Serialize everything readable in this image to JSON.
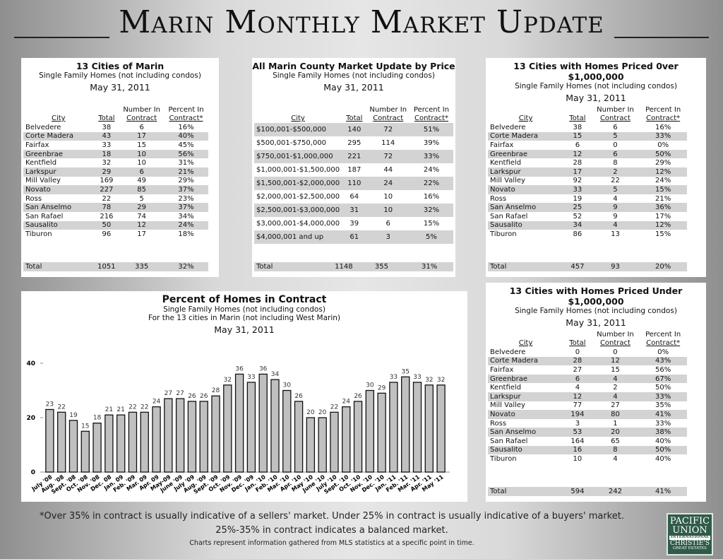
{
  "title": "Marin Monthly Market Update",
  "headers": {
    "city": "City",
    "total": "Total",
    "number": "Number In Contract",
    "number_l1": "Number In",
    "number_l2": "Contract",
    "percent_l1": "Percent In",
    "percent_l2": "Contract*"
  },
  "panel1": {
    "title": "13 Cities of Marin",
    "subtitle": "Single Family Homes (not including condos)",
    "date": "May 31, 2011",
    "rows": [
      [
        "Belvedere",
        "38",
        "6",
        "16%"
      ],
      [
        "Corte Madera",
        "43",
        "17",
        "40%"
      ],
      [
        "Fairfax",
        "33",
        "15",
        "45%"
      ],
      [
        "Greenbrae",
        "18",
        "10",
        "56%"
      ],
      [
        "Kentfield",
        "32",
        "10",
        "31%"
      ],
      [
        "Larkspur",
        "29",
        "6",
        "21%"
      ],
      [
        "Mill Valley",
        "169",
        "49",
        "29%"
      ],
      [
        "Novato",
        "227",
        "85",
        "37%"
      ],
      [
        "Ross",
        "22",
        "5",
        "23%"
      ],
      [
        "San Anselmo",
        "78",
        "29",
        "37%"
      ],
      [
        "San Rafael",
        "216",
        "74",
        "34%"
      ],
      [
        "Sausalito",
        "50",
        "12",
        "24%"
      ],
      [
        "Tiburon",
        "96",
        "17",
        "18%"
      ]
    ],
    "total": [
      "Total",
      "1051",
      "335",
      "32%"
    ]
  },
  "panel2": {
    "title": "All Marin County Market Update by Price",
    "subtitle": "Single Family Homes (not including condos)",
    "date": "May 31, 2011",
    "rows": [
      [
        "$100,001-$500,000",
        "140",
        "72",
        "51%"
      ],
      [
        "$500,001-$750,000",
        "295",
        "114",
        "39%"
      ],
      [
        "$750,001-$1,000,000",
        "221",
        "72",
        "33%"
      ],
      [
        "$1,000,001-$1,500,000",
        "187",
        "44",
        "24%"
      ],
      [
        "$1,500,001-$2,000,000",
        "110",
        "24",
        "22%"
      ],
      [
        "$2,000,001-$2,500,000",
        "64",
        "10",
        "16%"
      ],
      [
        "$2,500,001-$3,000,000",
        "31",
        "10",
        "32%"
      ],
      [
        "$3,000,001-$4,000,000",
        "39",
        "6",
        "15%"
      ],
      [
        "$4,000,001 and up",
        "61",
        "3",
        "5%"
      ]
    ],
    "total": [
      "Total",
      "1148",
      "355",
      "31%"
    ]
  },
  "panel3": {
    "title": "13 Cities with Homes Priced 0ver $1,000,000",
    "subtitle": "Single Family Homes (not including condos)",
    "date": "May 31, 2011",
    "rows": [
      [
        "Belvedere",
        "38",
        "6",
        "16%"
      ],
      [
        "Corte Madera",
        "15",
        "5",
        "33%"
      ],
      [
        "Fairfax",
        "6",
        "0",
        "0%"
      ],
      [
        "Greenbrae",
        "12",
        "6",
        "50%"
      ],
      [
        "Kentfield",
        "28",
        "8",
        "29%"
      ],
      [
        "Larkspur",
        "17",
        "2",
        "12%"
      ],
      [
        "Mill Valley",
        "92",
        "22",
        "24%"
      ],
      [
        "Novato",
        "33",
        "5",
        "15%"
      ],
      [
        "Ross",
        "19",
        "4",
        "21%"
      ],
      [
        "San Anselmo",
        "25",
        "9",
        "36%"
      ],
      [
        "San Rafael",
        "52",
        "9",
        "17%"
      ],
      [
        "Sausalito",
        "34",
        "4",
        "12%"
      ],
      [
        "Tiburon",
        "86",
        "13",
        "15%"
      ]
    ],
    "total": [
      "Total",
      "457",
      "93",
      "20%"
    ]
  },
  "panel4": {
    "title": "13 Cities with Homes Priced Under $1,000,000",
    "subtitle": "Single Family Homes (not including condos)",
    "date": "May 31, 2011",
    "rows": [
      [
        "Belvedere",
        "0",
        "0",
        "0%"
      ],
      [
        "Corte Madera",
        "28",
        "12",
        "43%"
      ],
      [
        "Fairfax",
        "27",
        "15",
        "56%"
      ],
      [
        "Greenbrae",
        "6",
        "4",
        "67%"
      ],
      [
        "Kentfield",
        "4",
        "2",
        "50%"
      ],
      [
        "Larkspur",
        "12",
        "4",
        "33%"
      ],
      [
        "Mill Valley",
        "77",
        "27",
        "35%"
      ],
      [
        "Novato",
        "194",
        "80",
        "41%"
      ],
      [
        "Ross",
        "3",
        "1",
        "33%"
      ],
      [
        "San Anselmo",
        "53",
        "20",
        "38%"
      ],
      [
        "San Rafael",
        "164",
        "65",
        "40%"
      ],
      [
        "Sausalito",
        "16",
        "8",
        "50%"
      ],
      [
        "Tiburon",
        "10",
        "4",
        "40%"
      ]
    ],
    "total": [
      "Total",
      "594",
      "242",
      "41%"
    ]
  },
  "chart_data": {
    "type": "bar",
    "title": "Percent of Homes in Contract",
    "subtitle": "Single Family Homes (not including condos)",
    "subtitle2": "For the 13 cities in Marin (not including West Marin)",
    "date": "May 31, 2011",
    "categories": [
      "July '08",
      "Aug. '08",
      "Sept. '08",
      "Oct. '08",
      "Nov. '08",
      "Dec. 08",
      "Jan. 09",
      "Feb. '09",
      "Mar. 09",
      "Apr. 09",
      "May-09",
      "June '09",
      "July '09",
      "Aug. '09",
      "Sept. '09",
      "Oct. '09",
      "Nov. '09",
      "Dec. '09",
      "Jan. '10",
      "Feb. '10",
      "Mar. '10",
      "Apr. '10",
      "May '10",
      "June '10",
      "July '10",
      "Sept. '10",
      "Oct. '10",
      "Nov. '10",
      "Dec. '10",
      "Jan. '11",
      "Feb. '11",
      "Mar. '11",
      "Apr. '11",
      "May '11"
    ],
    "values": [
      23,
      22,
      19,
      15,
      18,
      21,
      21,
      22,
      22,
      24,
      27,
      27,
      26,
      26,
      28,
      32,
      36,
      33,
      36,
      34,
      30,
      26,
      20,
      20,
      22,
      24,
      26,
      30,
      29,
      33,
      35,
      33,
      32,
      32
    ],
    "yticks": [
      "0",
      "20",
      "40"
    ],
    "ylim": [
      0,
      40
    ],
    "bar_color": "#c0c0c0"
  },
  "footer": {
    "line1": "*Over 35% in contract is usually indicative of a sellers' market.  Under 25% in contract is usually indicative of a buyers' market.",
    "line2": "25%-35% in contract indicates a balanced market.",
    "line3": "Charts represent information gathered from MLS statistics at a specific point in time."
  },
  "logo": {
    "line1": "PACIFIC",
    "line2": "UNION",
    "line3": "INTERNATIONAL",
    "line4": "CHRISTIE'S",
    "line5": "GREAT ESTATES",
    "color": "#2f5b48"
  }
}
